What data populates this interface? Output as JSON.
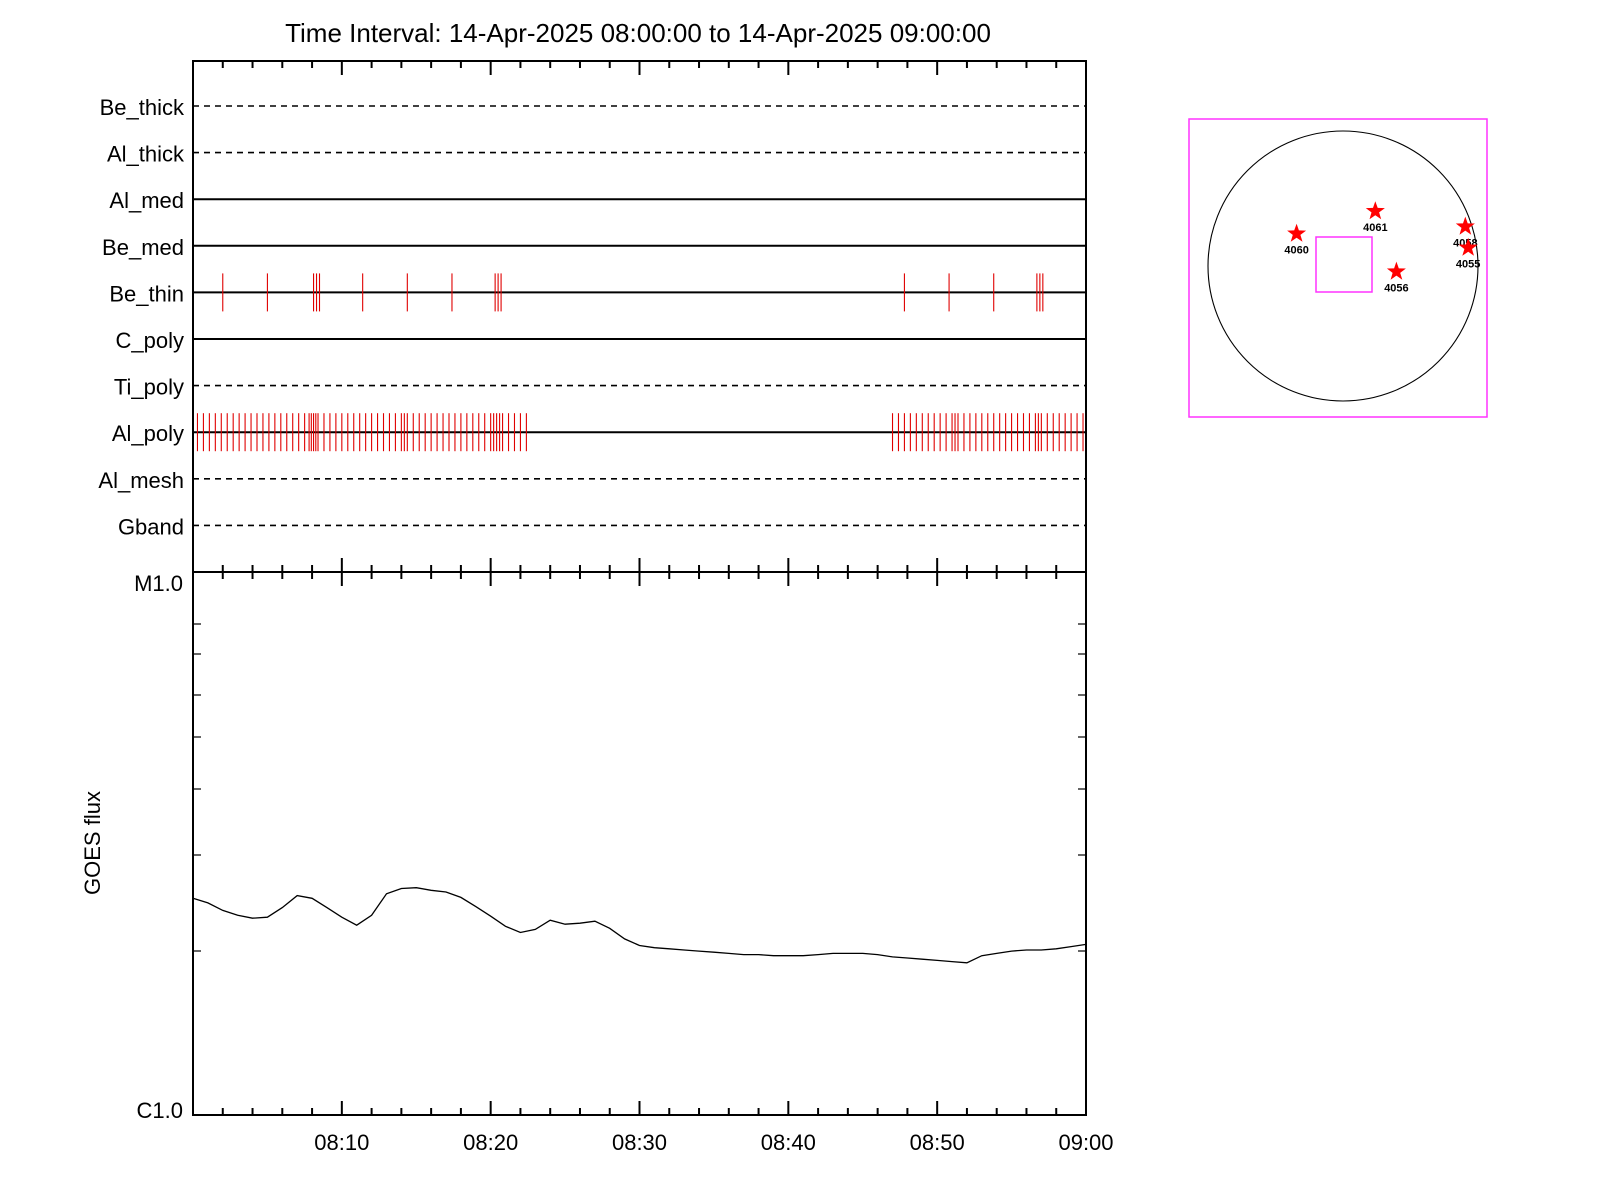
{
  "chart_data": [
    {
      "type": "timeline",
      "title": "Time Interval: 14-Apr-2025 08:00:00 to 14-Apr-2025 09:00:00",
      "x_range_minutes": [
        0,
        60
      ],
      "filters": [
        {
          "name": "Be_thick",
          "style": "dashed",
          "events": []
        },
        {
          "name": "Al_thick",
          "style": "dashed",
          "events": []
        },
        {
          "name": "Al_med",
          "style": "solid",
          "events": []
        },
        {
          "name": "Be_med",
          "style": "solid",
          "events": []
        },
        {
          "name": "Be_thin",
          "style": "solid",
          "events": [
            2.0,
            5.0,
            8.1,
            8.3,
            8.5,
            11.4,
            14.4,
            17.4,
            20.3,
            20.5,
            20.7,
            47.8,
            50.8,
            53.8,
            56.7,
            56.9,
            57.1
          ]
        },
        {
          "name": "C_poly",
          "style": "solid",
          "events": []
        },
        {
          "name": "Ti_poly",
          "style": "dashed",
          "events": []
        },
        {
          "name": "Al_poly",
          "style": "solid",
          "events": [
            0.3,
            0.7,
            1.1,
            1.5,
            1.9,
            2.3,
            2.7,
            3.1,
            3.5,
            3.9,
            4.3,
            4.7,
            5.1,
            5.5,
            5.9,
            6.3,
            6.7,
            7.1,
            7.5,
            7.8,
            7.95,
            8.1,
            8.25,
            8.4,
            8.8,
            9.2,
            9.6,
            10.0,
            10.4,
            10.8,
            11.2,
            11.6,
            12.0,
            12.4,
            12.8,
            13.2,
            13.6,
            14.0,
            14.2,
            14.4,
            14.8,
            15.2,
            15.6,
            16.0,
            16.4,
            16.8,
            17.2,
            17.6,
            18.0,
            18.4,
            18.8,
            19.2,
            19.6,
            20.0,
            20.2,
            20.4,
            20.6,
            20.8,
            21.2,
            21.6,
            22.0,
            22.4,
            47.0,
            47.4,
            47.8,
            48.2,
            48.6,
            49.0,
            49.4,
            49.8,
            50.2,
            50.6,
            51.0,
            51.2,
            51.4,
            51.8,
            52.2,
            52.6,
            53.0,
            53.4,
            53.8,
            54.2,
            54.6,
            55.0,
            55.4,
            55.8,
            56.2,
            56.6,
            56.8,
            57.0,
            57.4,
            57.8,
            58.2,
            58.6,
            59.0,
            59.4,
            59.8
          ]
        },
        {
          "name": "Al_mesh",
          "style": "dashed",
          "events": []
        },
        {
          "name": "Gband",
          "style": "dashed",
          "events": []
        }
      ]
    },
    {
      "type": "line",
      "ylabel": "GOES flux",
      "y_ticks": [
        "M1.0",
        "C1.0"
      ],
      "x_ticks": [
        "08:10",
        "08:20",
        "08:30",
        "08:40",
        "08:50",
        "09:00"
      ],
      "x_range_minutes": [
        0,
        60
      ],
      "y_range_log": [
        -6,
        -5
      ],
      "series": [
        {
          "x": [
            0,
            1,
            2,
            3,
            4,
            5,
            6,
            7,
            8,
            9,
            10,
            11,
            12,
            13,
            14,
            15,
            16,
            17,
            18,
            19,
            20,
            21,
            22,
            23,
            24,
            25,
            26,
            27,
            28,
            29,
            30,
            31,
            32,
            33,
            34,
            35,
            36,
            37,
            38,
            39,
            40,
            41,
            42,
            43,
            44,
            45,
            46,
            47,
            48,
            49,
            50,
            51,
            52,
            53,
            54,
            55,
            56,
            57,
            58,
            59,
            60
          ],
          "y": [
            2.55,
            2.5,
            2.42,
            2.37,
            2.34,
            2.35,
            2.45,
            2.58,
            2.55,
            2.45,
            2.35,
            2.27,
            2.37,
            2.6,
            2.66,
            2.67,
            2.64,
            2.62,
            2.56,
            2.46,
            2.36,
            2.26,
            2.2,
            2.23,
            2.32,
            2.28,
            2.29,
            2.31,
            2.24,
            2.14,
            2.08,
            2.06,
            2.05,
            2.04,
            2.03,
            2.02,
            2.01,
            2.0,
            2.0,
            1.99,
            1.99,
            1.99,
            2.0,
            2.01,
            2.01,
            2.01,
            2.0,
            1.98,
            1.97,
            1.96,
            1.95,
            1.94,
            1.93,
            1.99,
            2.01,
            2.03,
            2.04,
            2.04,
            2.05,
            2.07,
            2.09
          ]
        }
      ]
    },
    {
      "type": "scatter",
      "description_labels_only": true,
      "points": [
        {
          "label": "4060",
          "x": -330,
          "y": 230
        },
        {
          "label": "4061",
          "x": 230,
          "y": 390
        },
        {
          "label": "4058",
          "x": 870,
          "y": 280
        },
        {
          "label": "4055",
          "x": 890,
          "y": 130
        },
        {
          "label": "4056",
          "x": 380,
          "y": -40
        }
      ],
      "axis_range": [
        -1000,
        1000
      ]
    }
  ]
}
